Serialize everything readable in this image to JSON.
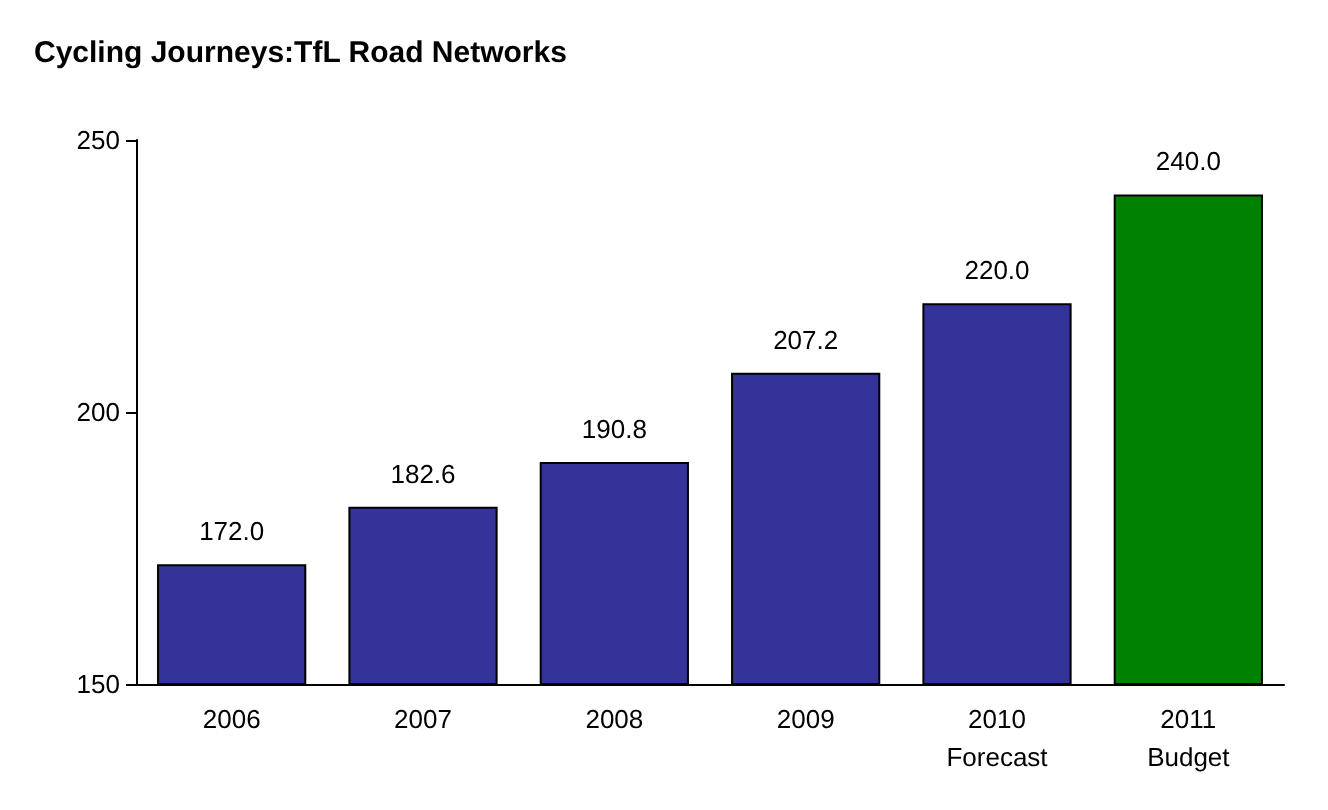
{
  "chart_data": {
    "type": "bar",
    "title": "Cycling Journeys:TfL Road Networks",
    "categories": [
      "2006",
      "2007",
      "2008",
      "2009",
      "2010\nForecast",
      "2011\nBudget"
    ],
    "values": [
      172.0,
      182.6,
      190.8,
      207.2,
      220.0,
      240.0
    ],
    "colors": [
      "#333399",
      "#333399",
      "#333399",
      "#333399",
      "#333399",
      "#008000"
    ],
    "value_labels": [
      "172.0",
      "182.6",
      "190.8",
      "207.2",
      "220.0",
      "240.0"
    ],
    "ylim": [
      150,
      250
    ],
    "yticks": [
      150,
      200,
      250
    ],
    "grid": false
  }
}
